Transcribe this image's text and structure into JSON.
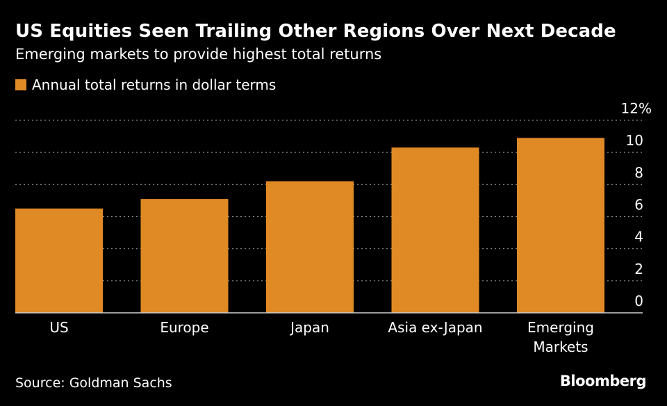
{
  "title": "US Equities Seen Trailing Other Regions Over Next Decade",
  "subtitle": "Emerging markets to provide highest total returns",
  "legend": {
    "label": "Annual total returns in dollar terms",
    "color": "#e08a25"
  },
  "source": "Source: Goldman Sachs",
  "brand": "Bloomberg",
  "chart_data": {
    "type": "bar",
    "categories": [
      [
        "US"
      ],
      [
        "Europe"
      ],
      [
        "Japan"
      ],
      [
        "Asia ex-Japan"
      ],
      [
        "Emerging",
        "Markets"
      ]
    ],
    "values": [
      6.5,
      7.1,
      8.2,
      10.3,
      10.9
    ],
    "ylim": [
      0,
      12
    ],
    "y_ticks": [
      "0",
      "2",
      "4",
      "6",
      "8",
      "10",
      "12%"
    ],
    "y_tick_values": [
      0,
      2,
      4,
      6,
      8,
      10,
      12
    ],
    "y_axis_side": "right",
    "grid": true,
    "bar_color": "#e08a25"
  }
}
